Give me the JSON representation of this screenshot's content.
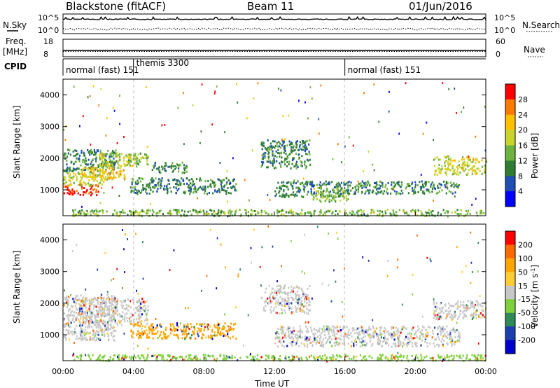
{
  "header": {
    "station": "Blackstone (fitACF)",
    "beam": "Beam 11",
    "date": "01/Jun/2016"
  },
  "top_panels": {
    "nsky_label": "N.Sky",
    "nsky_ticks": [
      "10^5",
      "10^0"
    ],
    "nsearch_label": "N.Search",
    "nsearch_ticks": [
      "10^5",
      "10^0"
    ],
    "freq_label_1": "Freq.",
    "freq_label_2": "[MHz]",
    "freq_ticks": [
      "18",
      "8"
    ],
    "nave_label": "Nave",
    "nave_ticks": [
      "60",
      "0"
    ],
    "cpid_label": "CPID",
    "cpid_segments": [
      {
        "start_hour": 0,
        "label": "normal (fast) 151"
      },
      {
        "start_hour": 4,
        "label": "themis 3300"
      },
      {
        "start_hour": 16,
        "label": "normal (fast) 151"
      }
    ]
  },
  "chart_data": [
    {
      "type": "heatmap",
      "panel": "power",
      "ylabel": "Slant Range [km]",
      "ylim": [
        180,
        4500
      ],
      "yticks": [
        "1000",
        "2000",
        "3000",
        "4000"
      ],
      "xlim_hours": [
        0,
        24
      ],
      "colorbar_label": "Power [dB]",
      "colorbar_ticks": [
        "28",
        "24",
        "20",
        "16",
        "12",
        "8",
        "4"
      ],
      "colorbar_colors": [
        "#0000ff",
        "#1f4fb4",
        "#2e7d32",
        "#6db33f",
        "#c8d42a",
        "#ffc000",
        "#ff7a00",
        "#ff0000"
      ],
      "echo_bands": [
        {
          "t0": 0.0,
          "t1": 2.0,
          "r0": 850,
          "r1": 1200,
          "level": 7
        },
        {
          "t0": 0.0,
          "t1": 2.5,
          "r0": 1150,
          "r1": 1600,
          "level": 4
        },
        {
          "t0": 0.0,
          "t1": 3.0,
          "r0": 1600,
          "r1": 2300,
          "level": 2
        },
        {
          "t0": 1.0,
          "t1": 3.5,
          "r0": 1350,
          "r1": 1750,
          "level": 5
        },
        {
          "t0": 2.0,
          "t1": 4.2,
          "r0": 1700,
          "r1": 2200,
          "level": 4
        },
        {
          "t0": 3.5,
          "t1": 4.8,
          "r0": 1800,
          "r1": 2200,
          "level": 3
        },
        {
          "t0": 3.8,
          "t1": 9.8,
          "r0": 900,
          "r1": 1400,
          "level": 2
        },
        {
          "t0": 5.0,
          "t1": 7.0,
          "r0": 1550,
          "r1": 1900,
          "level": 2
        },
        {
          "t0": 11.2,
          "t1": 14.0,
          "r0": 1700,
          "r1": 2600,
          "level": 2
        },
        {
          "t0": 12.0,
          "t1": 16.0,
          "r0": 800,
          "r1": 1300,
          "level": 2
        },
        {
          "t0": 14.0,
          "t1": 16.2,
          "r0": 650,
          "r1": 1100,
          "level": 3
        },
        {
          "t0": 16.0,
          "t1": 22.5,
          "r0": 900,
          "r1": 1300,
          "level": 2
        },
        {
          "t0": 21.0,
          "t1": 24.0,
          "r0": 1500,
          "r1": 2100,
          "level": 4
        },
        {
          "t0": 0.5,
          "t1": 24.0,
          "r0": 200,
          "r1": 400,
          "level": 3
        }
      ]
    },
    {
      "type": "heatmap",
      "panel": "velocity",
      "ylabel": "Slant Range [km]",
      "ylim": [
        180,
        4500
      ],
      "yticks": [
        "1000",
        "2000",
        "3000",
        "4000"
      ],
      "xlim_hours": [
        0,
        24
      ],
      "xticks": [
        "00:00",
        "04:00",
        "08:00",
        "12:00",
        "16:00",
        "20:00",
        "00:00"
      ],
      "xlabel": "Time UT",
      "colorbar_label": "Velocity [m s^-1]",
      "colorbar_ticks": [
        "200",
        "100",
        "50",
        "15",
        "-15",
        "-50",
        "-100",
        "-200"
      ],
      "colorbar_colors": [
        "#ff0000",
        "#ff6a00",
        "#ffa500",
        "#ffcc33",
        "#c8c8c8",
        "#7fd13b",
        "#2e8b57",
        "#1c3fb0",
        "#0000cc"
      ],
      "echo_bands": [
        {
          "t0": 0.0,
          "t1": 3.0,
          "r0": 850,
          "r1": 2300,
          "level": 4
        },
        {
          "t0": 1.0,
          "t1": 4.8,
          "r0": 1350,
          "r1": 2200,
          "level": 4
        },
        {
          "t0": 3.8,
          "t1": 9.8,
          "r0": 900,
          "r1": 1400,
          "level": 2
        },
        {
          "t0": 11.2,
          "t1": 14.0,
          "r0": 1700,
          "r1": 2600,
          "level": 4
        },
        {
          "t0": 12.0,
          "t1": 22.5,
          "r0": 650,
          "r1": 1300,
          "level": 4
        },
        {
          "t0": 21.0,
          "t1": 24.0,
          "r0": 1500,
          "r1": 2100,
          "level": 4
        },
        {
          "t0": 0.5,
          "t1": 24.0,
          "r0": 200,
          "r1": 400,
          "level": 5
        }
      ]
    }
  ]
}
